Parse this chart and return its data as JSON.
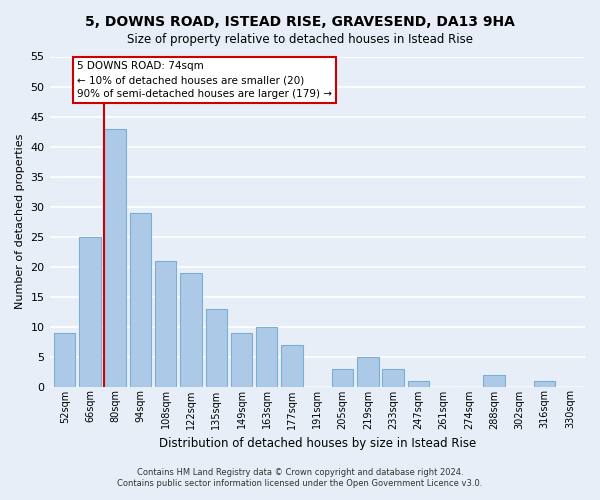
{
  "title1": "5, DOWNS ROAD, ISTEAD RISE, GRAVESEND, DA13 9HA",
  "title2": "Size of property relative to detached houses in Istead Rise",
  "xlabel": "Distribution of detached houses by size in Istead Rise",
  "ylabel": "Number of detached properties",
  "bar_labels": [
    "52sqm",
    "66sqm",
    "80sqm",
    "94sqm",
    "108sqm",
    "122sqm",
    "135sqm",
    "149sqm",
    "163sqm",
    "177sqm",
    "191sqm",
    "205sqm",
    "219sqm",
    "233sqm",
    "247sqm",
    "261sqm",
    "274sqm",
    "288sqm",
    "302sqm",
    "316sqm",
    "330sqm"
  ],
  "bar_values": [
    9,
    25,
    43,
    29,
    21,
    19,
    13,
    9,
    10,
    7,
    0,
    3,
    5,
    3,
    1,
    0,
    0,
    2,
    0,
    1,
    0
  ],
  "bar_color": "#adc9e8",
  "bar_edge_color": "#7aafd4",
  "vline_color": "#cc0000",
  "ylim": [
    0,
    55
  ],
  "yticks": [
    0,
    5,
    10,
    15,
    20,
    25,
    30,
    35,
    40,
    45,
    50,
    55
  ],
  "annotation_title": "5 DOWNS ROAD: 74sqm",
  "annotation_line1": "← 10% of detached houses are smaller (20)",
  "annotation_line2": "90% of semi-detached houses are larger (179) →",
  "annotation_box_color": "#ffffff",
  "annotation_box_edge": "#cc0000",
  "footer1": "Contains HM Land Registry data © Crown copyright and database right 2024.",
  "footer2": "Contains public sector information licensed under the Open Government Licence v3.0.",
  "bg_color": "#e8eef8",
  "plot_bg_color": "#e8eef8"
}
